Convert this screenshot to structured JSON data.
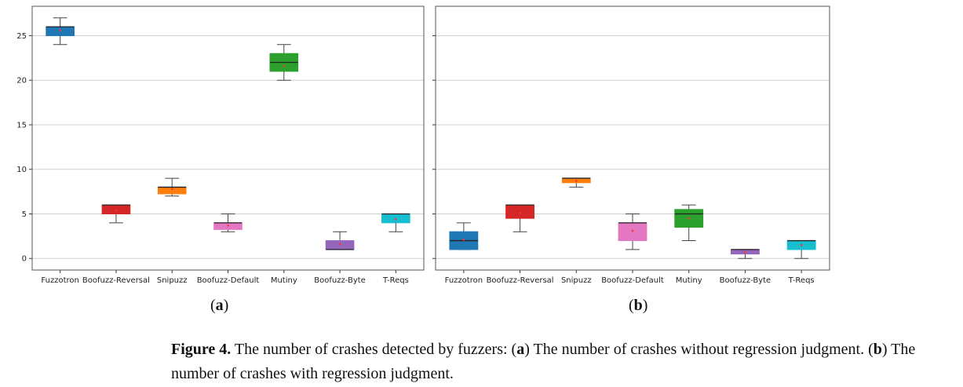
{
  "chart_data": [
    {
      "type": "box",
      "panel_label": "a",
      "categories": [
        "Fuzzotron",
        "Boofuzz-Reversal",
        "Snipuzz",
        "Boofuzz-Default",
        "Mutiny",
        "Boofuzz-Byte",
        "T-Reqs"
      ],
      "ylim": [
        -1.3,
        28.3
      ],
      "yticks": [
        0,
        5,
        10,
        15,
        20,
        25
      ],
      "ytick_labels": [
        "0",
        "5",
        "10",
        "15",
        "20",
        "25"
      ],
      "grid": true,
      "boxes": [
        {
          "min": 24,
          "q1": 25,
          "median": 26,
          "q3": 26,
          "max": 27,
          "mean": 25.6,
          "color": "#1f77b4"
        },
        {
          "min": 4,
          "q1": 5,
          "median": 6,
          "q3": 6,
          "max": 6,
          "mean": 5.4,
          "color": "#d62728"
        },
        {
          "min": 7,
          "q1": 7.25,
          "median": 8,
          "q3": 8,
          "max": 9,
          "mean": 7.8,
          "color": "#ff7f0e"
        },
        {
          "min": 3,
          "q1": 3.25,
          "median": 4,
          "q3": 4,
          "max": 5,
          "mean": 3.7,
          "color": "#e377c2"
        },
        {
          "min": 20,
          "q1": 21,
          "median": 22,
          "q3": 23,
          "max": 24,
          "mean": 21.6,
          "color": "#2ca02c"
        },
        {
          "min": 1,
          "q1": 1,
          "median": 1,
          "q3": 2,
          "max": 3,
          "mean": 1.6,
          "color": "#9467bd"
        },
        {
          "min": 3,
          "q1": 4,
          "median": 5,
          "q3": 5,
          "max": 5,
          "mean": 4.4,
          "color": "#17becf"
        }
      ]
    },
    {
      "type": "box",
      "panel_label": "b",
      "categories": [
        "Fuzzotron",
        "Boofuzz-Reversal",
        "Snipuzz",
        "Boofuzz-Default",
        "Mutiny",
        "Boofuzz-Byte",
        "T-Reqs"
      ],
      "ylim": [
        -1.3,
        28.3
      ],
      "yticks": [
        0,
        5,
        10,
        15,
        20,
        25
      ],
      "ytick_labels": [],
      "grid": true,
      "boxes": [
        {
          "min": 1,
          "q1": 1,
          "median": 2,
          "q3": 3,
          "max": 4,
          "mean": 2.1,
          "color": "#1f77b4"
        },
        {
          "min": 3,
          "q1": 4.5,
          "median": 6,
          "q3": 6,
          "max": 6,
          "mean": 5.1,
          "color": "#d62728"
        },
        {
          "min": 8,
          "q1": 8.5,
          "median": 9,
          "q3": 9,
          "max": 9,
          "mean": 8.7,
          "color": "#ff7f0e"
        },
        {
          "min": 1,
          "q1": 2,
          "median": 4,
          "q3": 4,
          "max": 5,
          "mean": 3.1,
          "color": "#e377c2"
        },
        {
          "min": 2,
          "q1": 3.5,
          "median": 5,
          "q3": 5.5,
          "max": 6,
          "mean": 4.5,
          "color": "#2ca02c"
        },
        {
          "min": 0,
          "q1": 0.5,
          "median": 1,
          "q3": 1,
          "max": 1,
          "mean": 0.7,
          "color": "#9467bd"
        },
        {
          "min": 0,
          "q1": 1,
          "median": 2,
          "q3": 2,
          "max": 2,
          "mean": 1.5,
          "color": "#17becf"
        }
      ]
    }
  ],
  "labels": {
    "a_open": "(",
    "a_letter": "a",
    "a_close": ")",
    "b_open": "(",
    "b_letter": "b",
    "b_close": ")"
  },
  "caption": {
    "prefix": "Figure 4.",
    "text_1": " The number of crashes detected by fuzzers: (",
    "a": "a",
    "text_2": ") The number of crashes without regression judgment. (",
    "b": "b",
    "text_3": ") The number of crashes with regression judgment."
  }
}
